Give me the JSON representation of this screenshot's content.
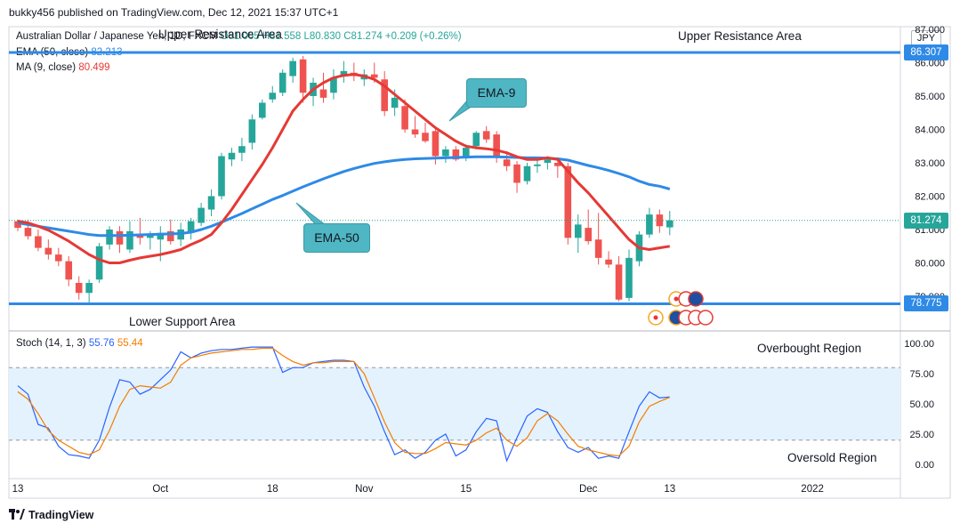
{
  "header": {
    "publish_line": "bukky456 published on TradingView.com, Dec 12, 2021 15:37 UTC+1",
    "symbol": "Australian Dollar / Japanese Yen, 1D, FXCM",
    "ohlc": "O81.065 H81.558 L80.830 C81.274 +0.209 (+0.26%)",
    "ema_legend_label": "EMA (50, close)",
    "ema_legend_value": "82.213",
    "ma_legend_label": "MA (9, close)",
    "ma_legend_value": "80.499",
    "stoch_legend_label": "Stoch (14, 1, 3)",
    "stoch_k_value": "55.76",
    "stoch_d_value": "55.44",
    "currency": "JPY"
  },
  "colors": {
    "up": "#26a69a",
    "down": "#ef5350",
    "ema50": "#2e8ae6",
    "ma9": "#e53935",
    "level": "#2e8ae6",
    "stoch_k": "#2962ff",
    "stoch_d": "#f57c00",
    "stoch_band": "#e3f2fd",
    "callout": "#4fb6c3"
  },
  "annotations": {
    "upper_resistance_left": "Upper Resistance Area",
    "upper_resistance_right": "Upper Resistance Area",
    "lower_support": "Lower Support Area",
    "overbought": "Overbought Region",
    "oversold": "Oversold Region",
    "ema9_callout": "EMA-9",
    "ema50_callout": "EMA-50"
  },
  "levels": {
    "resistance_label": "86.307",
    "support_label": "78.775",
    "last_price_label": "81.274"
  },
  "chart_data": [
    {
      "type": "candlestick",
      "title": "Australian Dollar / Japanese Yen, 1D, FXCM",
      "ylabel": "JPY",
      "ylim": [
        78.8,
        87.1
      ],
      "y_ticks": [
        "87.000",
        "86.000",
        "85.000",
        "84.000",
        "83.000",
        "82.000",
        "81.000",
        "80.000",
        "79.000"
      ],
      "x_ticks": [
        "13",
        "Oct",
        "18",
        "Nov",
        "15",
        "Dec",
        "13",
        "2022"
      ],
      "resistance_level": 86.307,
      "support_level": 78.775,
      "last_close": 81.274,
      "candles_ohlc": [
        [
          81.25,
          81.3,
          80.95,
          81.05
        ],
        [
          81.05,
          81.3,
          80.7,
          80.8
        ],
        [
          80.8,
          81.0,
          80.35,
          80.45
        ],
        [
          80.45,
          80.7,
          80.1,
          80.25
        ],
        [
          80.25,
          80.45,
          79.9,
          80.05
        ],
        [
          80.05,
          80.2,
          79.3,
          79.5
        ],
        [
          79.4,
          79.6,
          78.9,
          79.1
        ],
        [
          79.1,
          79.5,
          78.8,
          79.4
        ],
        [
          79.5,
          80.6,
          79.4,
          80.5
        ],
        [
          80.55,
          81.1,
          80.4,
          81.0
        ],
        [
          80.95,
          81.1,
          80.3,
          80.55
        ],
        [
          80.4,
          81.25,
          80.3,
          80.95
        ],
        [
          80.85,
          81.35,
          80.55,
          80.75
        ],
        [
          80.75,
          80.95,
          80.4,
          80.85
        ],
        [
          80.7,
          81.1,
          80.05,
          80.9
        ],
        [
          80.95,
          81.3,
          80.55,
          80.65
        ],
        [
          80.7,
          81.2,
          80.5,
          81.0
        ],
        [
          80.9,
          81.35,
          80.7,
          81.25
        ],
        [
          81.2,
          81.8,
          81.1,
          81.65
        ],
        [
          81.6,
          82.2,
          81.4,
          82.0
        ],
        [
          82.0,
          83.3,
          81.9,
          83.2
        ],
        [
          83.1,
          83.45,
          82.9,
          83.3
        ],
        [
          83.3,
          83.75,
          83.05,
          83.5
        ],
        [
          83.6,
          84.45,
          83.4,
          84.3
        ],
        [
          84.35,
          84.9,
          84.3,
          84.8
        ],
        [
          84.9,
          85.3,
          84.8,
          85.1
        ],
        [
          85.1,
          85.8,
          85.0,
          85.7
        ],
        [
          85.6,
          86.15,
          85.4,
          86.05
        ],
        [
          86.1,
          86.2,
          84.8,
          85.1
        ],
        [
          85.0,
          85.55,
          84.7,
          85.4
        ],
        [
          85.2,
          85.7,
          84.8,
          84.95
        ],
        [
          85.1,
          85.8,
          84.9,
          85.55
        ],
        [
          85.6,
          86.05,
          85.4,
          85.75
        ],
        [
          85.7,
          86.0,
          85.45,
          85.6
        ],
        [
          85.5,
          85.8,
          85.3,
          85.65
        ],
        [
          85.65,
          86.0,
          85.4,
          85.55
        ],
        [
          85.5,
          85.75,
          84.4,
          84.55
        ],
        [
          84.65,
          85.2,
          84.4,
          84.95
        ],
        [
          84.7,
          84.9,
          83.9,
          84.0
        ],
        [
          84.0,
          84.4,
          83.75,
          83.85
        ],
        [
          83.9,
          84.2,
          83.6,
          83.65
        ],
        [
          83.95,
          84.0,
          82.95,
          83.2
        ],
        [
          83.2,
          83.5,
          83.0,
          83.4
        ],
        [
          83.4,
          83.5,
          83.05,
          83.1
        ],
        [
          83.15,
          83.55,
          83.05,
          83.45
        ],
        [
          83.5,
          83.95,
          83.4,
          83.9
        ],
        [
          83.95,
          84.1,
          83.6,
          83.7
        ],
        [
          83.85,
          83.95,
          83.0,
          83.2
        ],
        [
          83.1,
          83.35,
          82.75,
          82.9
        ],
        [
          82.95,
          83.05,
          82.1,
          82.4
        ],
        [
          82.45,
          83.0,
          82.35,
          82.9
        ],
        [
          82.9,
          83.1,
          82.7,
          82.95
        ],
        [
          83.0,
          83.2,
          82.8,
          83.1
        ],
        [
          83.0,
          83.05,
          82.55,
          82.9
        ],
        [
          82.9,
          83.0,
          80.55,
          80.75
        ],
        [
          80.75,
          81.45,
          80.3,
          81.15
        ],
        [
          81.05,
          81.6,
          80.55,
          80.65
        ],
        [
          80.7,
          81.5,
          79.95,
          80.15
        ],
        [
          80.1,
          80.35,
          79.85,
          79.95
        ],
        [
          79.95,
          80.2,
          78.85,
          78.9
        ],
        [
          78.95,
          80.4,
          78.85,
          80.15
        ],
        [
          80.05,
          80.95,
          79.9,
          80.85
        ],
        [
          80.85,
          81.65,
          80.75,
          81.45
        ],
        [
          81.45,
          81.6,
          80.9,
          81.1
        ],
        [
          81.065,
          81.558,
          80.83,
          81.274
        ]
      ],
      "series": [
        {
          "name": "EMA (50, close)",
          "values": [
            81.2,
            81.15,
            81.1,
            81.05,
            81.0,
            80.95,
            80.9,
            80.85,
            80.82,
            80.82,
            80.82,
            80.83,
            80.84,
            80.85,
            80.86,
            80.87,
            80.88,
            80.92,
            81.0,
            81.1,
            81.22,
            81.35,
            81.48,
            81.62,
            81.76,
            81.9,
            82.02,
            82.15,
            82.28,
            82.4,
            82.52,
            82.63,
            82.74,
            82.83,
            82.91,
            82.98,
            83.03,
            83.07,
            83.1,
            83.12,
            83.13,
            83.14,
            83.15,
            83.16,
            83.17,
            83.18,
            83.18,
            83.18,
            83.17,
            83.16,
            83.15,
            83.15,
            83.14,
            83.12,
            83.08,
            83.0,
            82.92,
            82.85,
            82.77,
            82.68,
            82.58,
            82.45,
            82.35,
            82.3,
            82.213
          ]
        },
        {
          "name": "MA (9, close)",
          "values": [
            81.25,
            81.2,
            81.1,
            80.98,
            80.82,
            80.65,
            80.45,
            80.25,
            80.1,
            80.0,
            80.0,
            80.08,
            80.15,
            80.2,
            80.25,
            80.32,
            80.4,
            80.55,
            80.68,
            80.85,
            81.2,
            81.6,
            82.05,
            82.5,
            82.95,
            83.45,
            84.0,
            84.55,
            84.9,
            85.2,
            85.4,
            85.55,
            85.62,
            85.65,
            85.6,
            85.5,
            85.3,
            85.05,
            84.8,
            84.55,
            84.3,
            84.05,
            83.85,
            83.65,
            83.5,
            83.45,
            83.42,
            83.38,
            83.3,
            83.18,
            83.1,
            83.1,
            83.15,
            83.1,
            82.75,
            82.4,
            82.1,
            81.75,
            81.4,
            81.05,
            80.7,
            80.45,
            80.4,
            80.45,
            80.499
          ]
        }
      ]
    },
    {
      "type": "line",
      "title": "Stoch (14, 1, 3)",
      "ylim": [
        0,
        100
      ],
      "y_ticks": [
        "100.00",
        "75.00",
        "50.00",
        "25.00",
        "0.00"
      ],
      "bands": [
        20,
        80
      ],
      "series": [
        {
          "name": "%K",
          "values": [
            65,
            58,
            33,
            30,
            15,
            8,
            7,
            5,
            20,
            47,
            70,
            68,
            58,
            62,
            70,
            78,
            93,
            88,
            92,
            94,
            95,
            95,
            96,
            97,
            97,
            97,
            76,
            80,
            80,
            84,
            85,
            86,
            86,
            85,
            64,
            48,
            27,
            8,
            12,
            5,
            10,
            20,
            25,
            7,
            12,
            27,
            38,
            36,
            3,
            22,
            40,
            46,
            43,
            27,
            14,
            10,
            14,
            5,
            7,
            5,
            27,
            48,
            60,
            55,
            55.76
          ]
        },
        {
          "name": "%D",
          "values": [
            60,
            54,
            42,
            28,
            20,
            15,
            10,
            8,
            12,
            28,
            48,
            62,
            65,
            64,
            63,
            68,
            82,
            88,
            90,
            92,
            93,
            94,
            95,
            95,
            96,
            96,
            90,
            85,
            82,
            84,
            84,
            85,
            85,
            85,
            75,
            55,
            35,
            18,
            10,
            9,
            9,
            13,
            18,
            17,
            16,
            20,
            26,
            30,
            20,
            15,
            22,
            36,
            42,
            36,
            25,
            15,
            12,
            10,
            8,
            7,
            15,
            35,
            48,
            52,
            55.44
          ]
        }
      ]
    }
  ]
}
